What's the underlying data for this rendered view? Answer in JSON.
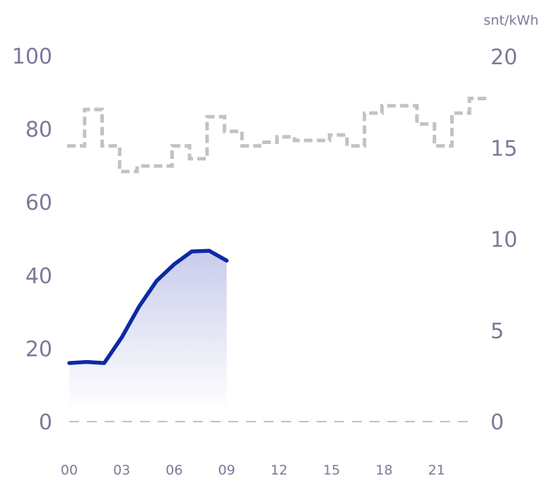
{
  "chart_data": {
    "type": "line",
    "x_ticks": [
      "00",
      "03",
      "06",
      "09",
      "12",
      "15",
      "18",
      "21"
    ],
    "y_left": {
      "ticks": [
        "0",
        "20",
        "40",
        "60",
        "80",
        "100"
      ],
      "range": [
        0,
        100
      ]
    },
    "y_right": {
      "unit": "snt/kWh",
      "ticks": [
        "0",
        "5",
        "10",
        "15",
        "20"
      ],
      "range": [
        0,
        20
      ]
    },
    "series": [
      {
        "style": "solid-area",
        "axis": "left",
        "color": "#0a2aa3",
        "x": [
          0,
          1,
          2,
          3,
          4,
          5,
          6,
          7,
          8,
          9
        ],
        "values": [
          16,
          16.3,
          16,
          23,
          31.5,
          38.5,
          43,
          46.5,
          46.7,
          44
        ]
      },
      {
        "style": "dashed-step",
        "axis": "right",
        "color": "#c2c2c2",
        "x": [
          0,
          1,
          2,
          3,
          4,
          5,
          6,
          7,
          8,
          9,
          10,
          11,
          12,
          13,
          14,
          15,
          16,
          17,
          18,
          19,
          20,
          21,
          22,
          23
        ],
        "values": [
          15.1,
          17.1,
          15.1,
          13.7,
          14,
          14,
          15.1,
          14.4,
          16.7,
          15.9,
          15.1,
          15.3,
          15.6,
          15.4,
          15.4,
          15.7,
          15.1,
          16.9,
          17.3,
          17.3,
          16.3,
          15.1,
          16.9,
          17.7
        ]
      }
    ],
    "baseline_color": "#b5c4cc",
    "grid": false
  }
}
